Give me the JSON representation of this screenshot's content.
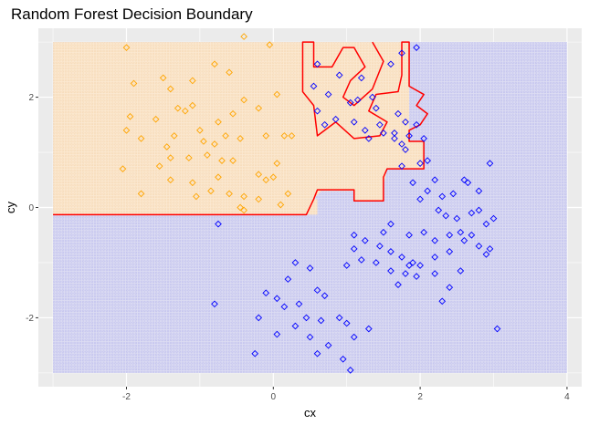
{
  "chart_data": {
    "type": "scatter",
    "title": "Random Forest Decision Boundary",
    "xlabel": "cx",
    "ylabel": "cy",
    "xlim": [
      -3.2,
      4.2
    ],
    "ylim": [
      -3.25,
      3.25
    ],
    "x_ticks": [
      -2,
      0,
      2,
      4
    ],
    "y_ticks": [
      -2,
      0,
      2
    ],
    "x_tick_labels": [
      "-2",
      "0",
      "2",
      "4"
    ],
    "y_tick_labels": [
      "-2",
      "0",
      "2"
    ],
    "grid": true,
    "legend": "none",
    "colors": {
      "panel_bg": "#ebebeb",
      "grid": "#ffffff",
      "region_a": "#fbe8d0",
      "region_b": "#dcdcf2",
      "series_a": "#ffa500",
      "series_b": "#0000ff",
      "boundary": "#ff0000"
    },
    "regions": [
      {
        "polygon": [
          [
            -3,
            -0.13
          ],
          [
            -3,
            3
          ],
          [
            0.4,
            3
          ],
          [
            0.4,
            0.15
          ],
          [
            0.6,
            0.15
          ],
          [
            0.6,
            -0.13
          ]
        ]
      },
      {
        "polygon": [
          [
            0.4,
            3
          ],
          [
            1.85,
            3
          ],
          [
            1.85,
            1.2
          ],
          [
            2.05,
            1.2
          ],
          [
            2.05,
            0.7
          ],
          [
            1.55,
            0.7
          ],
          [
            1.5,
            0.4
          ],
          [
            1.5,
            0.12
          ],
          [
            1.1,
            0.12
          ],
          [
            1.1,
            0.3
          ],
          [
            0.65,
            0.3
          ],
          [
            0.55,
            0.15
          ],
          [
            0.4,
            0.15
          ]
        ]
      }
    ],
    "boundary": [
      [
        -3,
        -0.13
      ],
      [
        0.45,
        -0.13
      ],
      [
        0.55,
        0.15
      ],
      [
        0.6,
        0.32
      ],
      [
        1.1,
        0.32
      ],
      [
        1.1,
        0.12
      ],
      [
        1.5,
        0.12
      ],
      [
        1.5,
        0.55
      ],
      [
        1.55,
        0.7
      ],
      [
        2.05,
        0.7
      ],
      [
        2.05,
        1.2
      ],
      [
        1.85,
        1.2
      ],
      [
        1.85,
        1.4
      ],
      [
        2.0,
        1.5
      ],
      [
        2.1,
        1.7
      ],
      [
        1.95,
        1.85
      ],
      [
        2.05,
        2.05
      ],
      [
        1.85,
        2.2
      ],
      [
        1.85,
        3
      ],
      [
        1.75,
        3
      ],
      [
        1.75,
        2.4
      ],
      [
        1.7,
        2.1
      ],
      [
        1.4,
        2.05
      ],
      [
        1.3,
        1.75
      ],
      [
        1.55,
        1.55
      ],
      [
        1.45,
        1.3
      ],
      [
        1.1,
        1.25
      ],
      [
        0.85,
        1.55
      ],
      [
        0.6,
        1.3
      ],
      [
        0.55,
        1.85
      ],
      [
        0.4,
        2.1
      ],
      [
        0.4,
        3
      ],
      [
        0.55,
        3
      ],
      [
        0.55,
        2.55
      ],
      [
        0.8,
        2.55
      ],
      [
        0.95,
        2.9
      ],
      [
        1.1,
        2.9
      ],
      [
        1.25,
        2.55
      ],
      [
        1.05,
        2.3
      ],
      [
        0.95,
        2.0
      ],
      [
        1.1,
        1.85
      ],
      [
        1.35,
        2.15
      ],
      [
        1.5,
        2.65
      ],
      [
        1.35,
        3
      ]
    ],
    "series": [
      {
        "marker": "diamond-open",
        "color": "#ffa500",
        "points": [
          [
            -2.0,
            2.9
          ],
          [
            -1.9,
            2.25
          ],
          [
            -1.5,
            2.35
          ],
          [
            -1.4,
            2.15
          ],
          [
            -1.1,
            2.3
          ],
          [
            -0.8,
            2.6
          ],
          [
            -0.6,
            2.45
          ],
          [
            -0.4,
            3.1
          ],
          [
            -0.05,
            2.95
          ],
          [
            -1.95,
            1.65
          ],
          [
            -1.6,
            1.6
          ],
          [
            -1.3,
            1.8
          ],
          [
            -1.2,
            1.75
          ],
          [
            -1.1,
            1.85
          ],
          [
            -1.0,
            1.4
          ],
          [
            -0.75,
            1.55
          ],
          [
            -0.55,
            1.7
          ],
          [
            -0.4,
            1.95
          ],
          [
            -0.2,
            1.8
          ],
          [
            0.05,
            2.05
          ],
          [
            -2.0,
            1.4
          ],
          [
            -1.8,
            1.25
          ],
          [
            -1.45,
            1.1
          ],
          [
            -1.35,
            1.3
          ],
          [
            -0.95,
            1.2
          ],
          [
            -0.8,
            1.15
          ],
          [
            -0.65,
            1.3
          ],
          [
            -0.45,
            1.25
          ],
          [
            -0.1,
            1.3
          ],
          [
            0.15,
            1.3
          ],
          [
            0.25,
            1.3
          ],
          [
            -2.05,
            0.7
          ],
          [
            -1.55,
            0.75
          ],
          [
            -1.4,
            0.9
          ],
          [
            -1.15,
            0.9
          ],
          [
            -0.9,
            0.95
          ],
          [
            -0.7,
            0.85
          ],
          [
            -0.55,
            0.85
          ],
          [
            -0.2,
            0.6
          ],
          [
            -0.1,
            0.5
          ],
          [
            0.0,
            0.55
          ],
          [
            -1.8,
            0.25
          ],
          [
            -1.4,
            0.5
          ],
          [
            -1.1,
            0.45
          ],
          [
            -0.85,
            0.3
          ],
          [
            -0.6,
            0.25
          ],
          [
            -0.4,
            0.2
          ],
          [
            -0.2,
            0.15
          ],
          [
            0.1,
            0.05
          ],
          [
            0.2,
            0.25
          ],
          [
            0.05,
            0.8
          ],
          [
            -0.45,
            0.0
          ],
          [
            -0.4,
            -0.05
          ],
          [
            -1.05,
            0.2
          ],
          [
            -0.75,
            0.55
          ]
        ]
      },
      {
        "marker": "diamond-open",
        "color": "#0000ff",
        "points": [
          [
            0.6,
            2.6
          ],
          [
            0.9,
            2.4
          ],
          [
            1.2,
            2.35
          ],
          [
            1.35,
            2.0
          ],
          [
            1.6,
            2.6
          ],
          [
            1.75,
            2.8
          ],
          [
            1.95,
            2.9
          ],
          [
            0.55,
            2.2
          ],
          [
            0.75,
            2.05
          ],
          [
            1.05,
            1.9
          ],
          [
            1.15,
            1.95
          ],
          [
            1.4,
            1.8
          ],
          [
            1.7,
            1.7
          ],
          [
            1.8,
            1.55
          ],
          [
            1.95,
            1.5
          ],
          [
            0.6,
            1.75
          ],
          [
            0.85,
            1.6
          ],
          [
            1.1,
            1.55
          ],
          [
            1.25,
            1.4
          ],
          [
            1.5,
            1.35
          ],
          [
            1.65,
            1.35
          ],
          [
            1.75,
            1.15
          ],
          [
            1.85,
            1.3
          ],
          [
            2.05,
            1.25
          ],
          [
            2.1,
            0.85
          ],
          [
            1.75,
            0.75
          ],
          [
            0.7,
            1.5
          ],
          [
            1.3,
            1.25
          ],
          [
            1.45,
            1.5
          ],
          [
            1.65,
            1.25
          ],
          [
            1.8,
            1.05
          ],
          [
            2.0,
            0.8
          ],
          [
            2.1,
            0.3
          ],
          [
            2.2,
            0.5
          ],
          [
            2.3,
            0.2
          ],
          [
            2.45,
            0.25
          ],
          [
            2.6,
            0.5
          ],
          [
            2.65,
            0.45
          ],
          [
            2.8,
            0.3
          ],
          [
            2.95,
            0.8
          ],
          [
            1.9,
            0.45
          ],
          [
            2.0,
            0.15
          ],
          [
            2.25,
            -0.05
          ],
          [
            2.35,
            -0.15
          ],
          [
            2.5,
            -0.2
          ],
          [
            2.7,
            -0.1
          ],
          [
            2.8,
            -0.05
          ],
          [
            1.6,
            -0.3
          ],
          [
            1.5,
            -0.45
          ],
          [
            1.85,
            -0.5
          ],
          [
            2.05,
            -0.45
          ],
          [
            2.2,
            -0.6
          ],
          [
            2.4,
            -0.5
          ],
          [
            2.55,
            -0.45
          ],
          [
            2.7,
            -0.5
          ],
          [
            2.9,
            -0.3
          ],
          [
            3.0,
            -0.2
          ],
          [
            1.1,
            -0.5
          ],
          [
            1.25,
            -0.6
          ],
          [
            1.45,
            -0.7
          ],
          [
            1.6,
            -0.8
          ],
          [
            1.75,
            -0.9
          ],
          [
            1.9,
            -1.0
          ],
          [
            2.0,
            -1.05
          ],
          [
            2.2,
            -0.9
          ],
          [
            2.4,
            -0.8
          ],
          [
            2.6,
            -0.6
          ],
          [
            2.8,
            -0.7
          ],
          [
            2.95,
            -0.75
          ],
          [
            1.1,
            -0.75
          ],
          [
            1.2,
            -0.95
          ],
          [
            1.4,
            -1.0
          ],
          [
            1.6,
            -1.15
          ],
          [
            1.8,
            -1.2
          ],
          [
            1.95,
            -1.25
          ],
          [
            2.2,
            -1.2
          ],
          [
            2.4,
            -1.45
          ],
          [
            2.55,
            -1.15
          ],
          [
            2.9,
            -0.85
          ],
          [
            -0.75,
            -0.3
          ],
          [
            0.3,
            -1.0
          ],
          [
            0.5,
            -1.1
          ],
          [
            0.6,
            -1.5
          ],
          [
            0.7,
            -1.6
          ],
          [
            1.0,
            -1.05
          ],
          [
            1.7,
            -1.4
          ],
          [
            1.85,
            -1.05
          ],
          [
            2.3,
            -1.7
          ],
          [
            0.2,
            -1.3
          ],
          [
            -0.1,
            -1.55
          ],
          [
            0.05,
            -1.65
          ],
          [
            0.15,
            -1.8
          ],
          [
            0.35,
            -1.75
          ],
          [
            0.45,
            -2.0
          ],
          [
            0.65,
            -2.05
          ],
          [
            0.9,
            -2.0
          ],
          [
            1.0,
            -2.1
          ],
          [
            1.1,
            -2.35
          ],
          [
            1.3,
            -2.2
          ],
          [
            -0.8,
            -1.75
          ],
          [
            -0.2,
            -2.0
          ],
          [
            0.05,
            -2.3
          ],
          [
            0.3,
            -2.15
          ],
          [
            0.5,
            -2.35
          ],
          [
            0.75,
            -2.5
          ],
          [
            0.95,
            -2.75
          ],
          [
            1.05,
            -2.95
          ],
          [
            -0.25,
            -2.65
          ],
          [
            3.05,
            -2.2
          ],
          [
            0.6,
            -2.65
          ]
        ]
      }
    ]
  }
}
